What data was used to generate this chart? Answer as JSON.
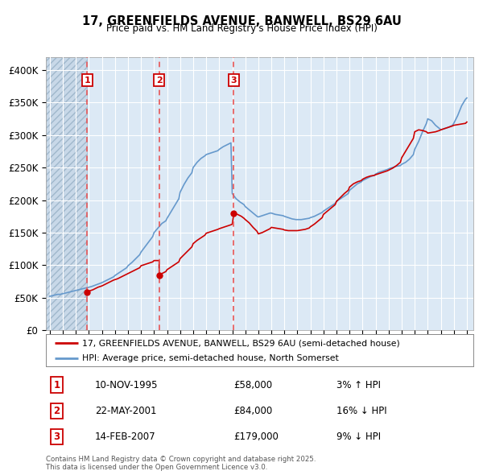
{
  "title": "17, GREENFIELDS AVENUE, BANWELL, BS29 6AU",
  "subtitle": "Price paid vs. HM Land Registry's House Price Index (HPI)",
  "background_color": "#ffffff",
  "plot_bg_color": "#dce9f5",
  "grid_color": "#ffffff",
  "ylim": [
    0,
    420000
  ],
  "yticks": [
    0,
    50000,
    100000,
    150000,
    200000,
    250000,
    300000,
    350000,
    400000
  ],
  "ytick_labels": [
    "£0",
    "£50K",
    "£100K",
    "£150K",
    "£200K",
    "£250K",
    "£300K",
    "£350K",
    "£400K"
  ],
  "xlim_start": 1992.7,
  "xlim_end": 2025.5,
  "xticks": [
    1993,
    1994,
    1995,
    1996,
    1997,
    1998,
    1999,
    2000,
    2001,
    2002,
    2003,
    2004,
    2005,
    2006,
    2007,
    2008,
    2009,
    2010,
    2011,
    2012,
    2013,
    2014,
    2015,
    2016,
    2017,
    2018,
    2019,
    2020,
    2021,
    2022,
    2023,
    2024,
    2025
  ],
  "hatch_end_year": 1995.87,
  "purchase_dates": [
    1995.87,
    2001.39,
    2007.12
  ],
  "purchase_labels": [
    "1",
    "2",
    "3"
  ],
  "purchase_prices": [
    58000,
    84000,
    179000
  ],
  "purchase_date_strings": [
    "10-NOV-1995",
    "22-MAY-2001",
    "14-FEB-2007"
  ],
  "purchase_hpi_diff": [
    "3% ↑ HPI",
    "16% ↓ HPI",
    "9% ↓ HPI"
  ],
  "red_line_color": "#cc0000",
  "blue_line_color": "#6699cc",
  "vline_color": "#e85555",
  "marker_color": "#cc0000",
  "legend_label_red": "17, GREENFIELDS AVENUE, BANWELL, BS29 6AU (semi-detached house)",
  "legend_label_blue": "HPI: Average price, semi-detached house, North Somerset",
  "footer_text": "Contains HM Land Registry data © Crown copyright and database right 2025.\nThis data is licensed under the Open Government Licence v3.0.",
  "hpi_x": [
    1993.0,
    1993.1,
    1993.2,
    1993.3,
    1993.4,
    1993.5,
    1993.6,
    1993.7,
    1993.8,
    1993.9,
    1994.0,
    1994.1,
    1994.2,
    1994.3,
    1994.4,
    1994.5,
    1994.6,
    1994.7,
    1994.8,
    1994.9,
    1995.0,
    1995.1,
    1995.2,
    1995.3,
    1995.4,
    1995.5,
    1995.6,
    1995.7,
    1995.8,
    1995.9,
    1996.0,
    1996.2,
    1996.4,
    1996.6,
    1996.8,
    1997.0,
    1997.3,
    1997.6,
    1997.9,
    1998.0,
    1998.3,
    1998.6,
    1998.9,
    1999.0,
    1999.3,
    1999.6,
    1999.9,
    2000.0,
    2000.3,
    2000.6,
    2000.9,
    2001.0,
    2001.3,
    2001.6,
    2001.9,
    2002.0,
    2002.3,
    2002.6,
    2002.9,
    2003.0,
    2003.3,
    2003.6,
    2003.9,
    2004.0,
    2004.3,
    2004.6,
    2004.9,
    2005.0,
    2005.3,
    2005.6,
    2005.9,
    2006.0,
    2006.3,
    2006.6,
    2006.9,
    2007.0,
    2007.3,
    2007.6,
    2007.9,
    2008.0,
    2008.3,
    2008.6,
    2008.9,
    2009.0,
    2009.3,
    2009.6,
    2009.9,
    2010.0,
    2010.3,
    2010.6,
    2010.9,
    2011.0,
    2011.3,
    2011.6,
    2011.9,
    2012.0,
    2012.3,
    2012.6,
    2012.9,
    2013.0,
    2013.3,
    2013.6,
    2013.9,
    2014.0,
    2014.3,
    2014.6,
    2014.9,
    2015.0,
    2015.3,
    2015.6,
    2015.9,
    2016.0,
    2016.3,
    2016.6,
    2016.9,
    2017.0,
    2017.3,
    2017.6,
    2017.9,
    2018.0,
    2018.3,
    2018.6,
    2018.9,
    2019.0,
    2019.3,
    2019.6,
    2019.9,
    2020.0,
    2020.3,
    2020.6,
    2020.9,
    2021.0,
    2021.3,
    2021.6,
    2021.9,
    2022.0,
    2022.3,
    2022.6,
    2022.9,
    2023.0,
    2023.3,
    2023.6,
    2023.9,
    2024.0,
    2024.3,
    2024.6,
    2024.9,
    2025.0
  ],
  "hpi_y": [
    52000,
    52500,
    53000,
    53500,
    54000,
    54500,
    55000,
    55000,
    55000,
    55500,
    56000,
    56500,
    57000,
    57500,
    58000,
    58500,
    59000,
    59500,
    60000,
    60500,
    61000,
    61500,
    62000,
    62500,
    63000,
    63500,
    64000,
    64500,
    65000,
    65000,
    66000,
    67000,
    68500,
    70000,
    71500,
    73000,
    76000,
    79000,
    82000,
    84000,
    88000,
    92000,
    96000,
    99000,
    104000,
    110000,
    116000,
    120000,
    128000,
    136000,
    144000,
    150000,
    157000,
    164000,
    168000,
    172000,
    182000,
    192000,
    202000,
    212000,
    224000,
    234000,
    242000,
    250000,
    258000,
    264000,
    268000,
    270000,
    272000,
    274000,
    276000,
    278000,
    282000,
    285000,
    288000,
    210000,
    202000,
    197000,
    193000,
    190000,
    185000,
    180000,
    175000,
    174000,
    176000,
    178000,
    180000,
    180000,
    178000,
    177000,
    176000,
    175000,
    173000,
    171000,
    170000,
    170000,
    170000,
    171000,
    172000,
    173000,
    175000,
    178000,
    181000,
    183000,
    187000,
    191000,
    195000,
    198000,
    202000,
    206000,
    210000,
    215000,
    220000,
    225000,
    228000,
    230000,
    233000,
    236000,
    238000,
    240000,
    243000,
    245000,
    247000,
    248000,
    250000,
    252000,
    253000,
    255000,
    258000,
    263000,
    270000,
    278000,
    290000,
    305000,
    318000,
    325000,
    322000,
    315000,
    310000,
    308000,
    310000,
    312000,
    315000,
    318000,
    330000,
    345000,
    355000,
    357000
  ],
  "red_x": [
    1995.87,
    1996.0,
    1996.3,
    1996.5,
    1996.7,
    1997.0,
    1997.3,
    1997.6,
    1997.9,
    1998.2,
    1998.5,
    1998.8,
    1999.0,
    1999.3,
    1999.6,
    1999.9,
    2000.0,
    2000.3,
    2000.6,
    2000.9,
    2001.0,
    2001.39,
    2001.39,
    2001.6,
    2001.9,
    2002.0,
    2002.3,
    2002.6,
    2002.9,
    2003.0,
    2003.3,
    2003.6,
    2003.9,
    2004.0,
    2004.3,
    2004.6,
    2004.9,
    2005.0,
    2005.3,
    2005.6,
    2005.9,
    2006.0,
    2006.3,
    2006.6,
    2006.9,
    2007.0,
    2007.12,
    2007.12,
    2007.4,
    2007.7,
    2007.9,
    2008.0,
    2008.3,
    2008.6,
    2008.9,
    2009.0,
    2009.3,
    2009.6,
    2009.9,
    2010.0,
    2010.3,
    2010.6,
    2010.9,
    2011.0,
    2011.3,
    2011.6,
    2011.9,
    2012.0,
    2012.3,
    2012.6,
    2012.9,
    2013.0,
    2013.3,
    2013.6,
    2013.9,
    2014.0,
    2014.3,
    2014.6,
    2014.9,
    2015.0,
    2015.3,
    2015.6,
    2015.9,
    2016.0,
    2016.3,
    2016.6,
    2016.9,
    2017.0,
    2017.3,
    2017.6,
    2017.9,
    2018.0,
    2018.3,
    2018.6,
    2018.9,
    2019.0,
    2019.3,
    2019.6,
    2019.9,
    2020.0,
    2020.3,
    2020.6,
    2020.9,
    2021.0,
    2021.3,
    2021.6,
    2021.9,
    2022.0,
    2022.3,
    2022.6,
    2022.9,
    2023.0,
    2023.3,
    2023.6,
    2023.9,
    2024.0,
    2024.3,
    2024.6,
    2024.9,
    2025.0
  ],
  "red_y": [
    58000,
    60000,
    62000,
    64000,
    66000,
    68000,
    71000,
    74000,
    77000,
    79000,
    82000,
    85000,
    87000,
    90000,
    93000,
    96000,
    99000,
    101000,
    103000,
    105000,
    107000,
    107000,
    84000,
    87000,
    90000,
    93000,
    97000,
    101000,
    105000,
    110000,
    116000,
    122000,
    128000,
    133000,
    138000,
    142000,
    146000,
    149000,
    151000,
    153000,
    155000,
    156000,
    158000,
    160000,
    162000,
    163000,
    179000,
    179000,
    178000,
    175000,
    172000,
    170000,
    165000,
    158000,
    152000,
    148000,
    150000,
    153000,
    156000,
    158000,
    157000,
    156000,
    155000,
    154000,
    153000,
    153000,
    153000,
    153000,
    154000,
    155000,
    157000,
    159000,
    163000,
    168000,
    173000,
    178000,
    183000,
    188000,
    193000,
    198000,
    204000,
    210000,
    215000,
    220000,
    225000,
    228000,
    230000,
    232000,
    235000,
    237000,
    238000,
    239000,
    241000,
    243000,
    245000,
    246000,
    249000,
    253000,
    258000,
    265000,
    275000,
    285000,
    295000,
    305000,
    308000,
    307000,
    305000,
    303000,
    304000,
    305000,
    307000,
    308000,
    310000,
    312000,
    314000,
    315000,
    316000,
    317000,
    318000,
    320000
  ]
}
